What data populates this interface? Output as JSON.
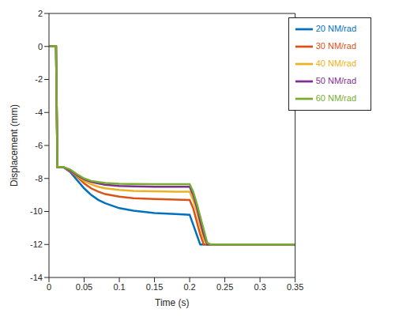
{
  "chart_data": {
    "type": "line",
    "xlabel": "Time (s)",
    "ylabel": "Displacement (mm)",
    "x": [
      0,
      0.01,
      0.012,
      0.02,
      0.03,
      0.04,
      0.05,
      0.06,
      0.07,
      0.08,
      0.1,
      0.12,
      0.15,
      0.18,
      0.2,
      0.205,
      0.21,
      0.215,
      0.22,
      0.225,
      0.23,
      0.35
    ],
    "series": [
      {
        "name": "20 NM/rad",
        "color": "#0072bd",
        "values": [
          0,
          0,
          -7.3,
          -7.3,
          -7.6,
          -8.1,
          -8.6,
          -9.0,
          -9.3,
          -9.5,
          -9.8,
          -9.95,
          -10.1,
          -10.15,
          -10.2,
          -10.8,
          -11.4,
          -12,
          -12,
          -12,
          -12,
          -12
        ]
      },
      {
        "name": "30 NM/rad",
        "color": "#d95319",
        "values": [
          0,
          0,
          -7.3,
          -7.3,
          -7.55,
          -7.9,
          -8.3,
          -8.6,
          -8.8,
          -8.95,
          -9.1,
          -9.2,
          -9.25,
          -9.28,
          -9.3,
          -9.8,
          -10.6,
          -11.4,
          -12,
          -12,
          -12,
          -12
        ]
      },
      {
        "name": "40 NM/rad",
        "color": "#edb120",
        "values": [
          0,
          0,
          -7.3,
          -7.3,
          -7.5,
          -7.85,
          -8.15,
          -8.35,
          -8.5,
          -8.6,
          -8.7,
          -8.75,
          -8.78,
          -8.8,
          -8.8,
          -9.3,
          -10.0,
          -10.9,
          -11.7,
          -12,
          -12,
          -12
        ]
      },
      {
        "name": "50 NM/rad",
        "color": "#7e2f8e",
        "values": [
          0,
          0,
          -7.3,
          -7.3,
          -7.5,
          -7.8,
          -8.05,
          -8.2,
          -8.3,
          -8.38,
          -8.45,
          -8.48,
          -8.5,
          -8.5,
          -8.5,
          -9.0,
          -9.7,
          -10.6,
          -11.4,
          -12,
          -12,
          -12
        ]
      },
      {
        "name": "60 NM/rad",
        "color": "#77ac30",
        "values": [
          0,
          0,
          -7.3,
          -7.3,
          -7.45,
          -7.75,
          -8.0,
          -8.15,
          -8.22,
          -8.27,
          -8.32,
          -8.33,
          -8.35,
          -8.35,
          -8.35,
          -8.8,
          -9.5,
          -10.3,
          -11.1,
          -11.9,
          -12,
          -12
        ]
      }
    ],
    "xlim": [
      0,
      0.35
    ],
    "xticks": [
      0,
      0.05,
      0.1,
      0.15,
      0.2,
      0.25,
      0.3,
      0.35
    ],
    "ylim": [
      -14,
      2
    ],
    "yticks": [
      -14,
      -12,
      -10,
      -8,
      -6,
      -4,
      -2,
      0,
      2
    ],
    "grid": false,
    "legend": "upper right"
  }
}
